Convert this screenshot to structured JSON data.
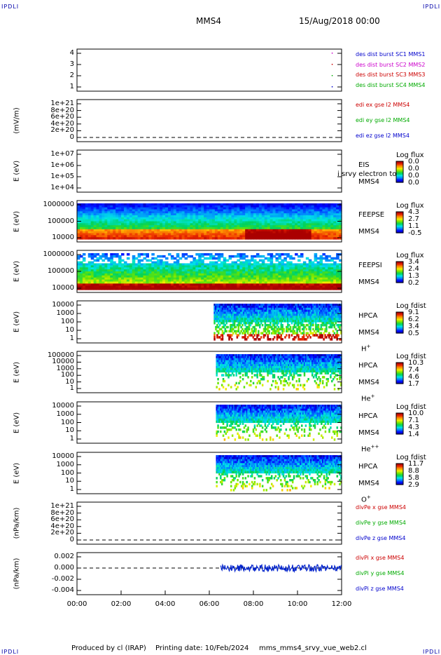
{
  "header": {
    "corner_tl": "IPDLI",
    "corner_tr": "IPDLI",
    "corner_bl": "IPDLI",
    "corner_br": "IPDLI",
    "spacecraft": "MMS4",
    "date": "15/Aug/2018 00:00"
  },
  "footer": {
    "produced": "Produced by cl (IRAP)",
    "printing": "Printing date: 10/Feb/2024",
    "file": "mms_mms4_srvy_vue_web2.cl"
  },
  "chart_data": {
    "type": "heatmap",
    "x": {
      "ticks": [
        "00:00",
        "02:00",
        "04:00",
        "06:00",
        "08:00",
        "10:00",
        "12:00"
      ],
      "range_hours": [
        0,
        12
      ]
    },
    "panels": [
      {
        "id": "burst",
        "kind": "line",
        "ylabel": "",
        "yticks": [
          "4",
          "3",
          "2",
          "1"
        ],
        "ylim": [
          0.5,
          4.5
        ],
        "legend": [
          {
            "text": "des dist burst SC1 MMS1",
            "color": "#0000cc"
          },
          {
            "text": "des dist burst SC2 MMS2",
            "color": "#cc00cc"
          },
          {
            "text": "des dist burst SC3 MMS3",
            "color": "#cc0000"
          },
          {
            "text": "des dist burst SC4 MMS4",
            "color": "#00aa00"
          }
        ],
        "points": [
          {
            "t": 11.55,
            "y": 4,
            "color": "#cc00cc"
          },
          {
            "t": 11.55,
            "y": 3,
            "color": "#cc0000"
          },
          {
            "t": 11.55,
            "y": 2,
            "color": "#00aa00"
          },
          {
            "t": 11.55,
            "y": 1,
            "color": "#0000cc"
          }
        ]
      },
      {
        "id": "edi",
        "kind": "line",
        "ylabel": "(mV/m)",
        "yticks": [
          "1e+21",
          "8e+20",
          "6e+20",
          "4e+20",
          "2e+20",
          "0"
        ],
        "ylim": [
          0,
          1e+21
        ],
        "zero_dashed": true,
        "legend": [
          {
            "text": "edi ex gse l2 MMS4",
            "color": "#cc0000"
          },
          {
            "text": "edi ey gse l2 MMS4",
            "color": "#00aa00"
          },
          {
            "text": "edi ez gse l2 MMS4",
            "color": "#0000cc"
          }
        ]
      },
      {
        "id": "eis",
        "kind": "spectrogram",
        "ylabel": "E (eV)",
        "yticks": [
          "1e+07",
          "1e+06",
          "1e+05",
          "1e+04"
        ],
        "ylim": [
          10000.0,
          10000000.0
        ],
        "side_labels": [
          "EIS",
          "MMS4"
        ],
        "overlay_text": "i srvy electron to",
        "colorbar": {
          "title": "Log flux",
          "ticks": [
            "0.0",
            "0.0",
            "0.0",
            "0.0"
          ]
        },
        "coverage_hours": null
      },
      {
        "id": "feepse",
        "kind": "spectrogram",
        "ylabel": "E (eV)",
        "yticks": [
          "1000000",
          "100000",
          "10000"
        ],
        "ylim": [
          10000.0,
          1000000.0
        ],
        "side_labels": [
          "FEEPSE",
          "MMS4"
        ],
        "colorbar": {
          "title": "Log flux",
          "ticks": [
            "4.3",
            "2.7",
            "1.1",
            "-0.5"
          ]
        },
        "coverage_hours": [
          0,
          12
        ]
      },
      {
        "id": "feepsi",
        "kind": "spectrogram",
        "ylabel": "E (eV)",
        "yticks": [
          "1000000",
          "100000",
          "10000"
        ],
        "ylim": [
          10000.0,
          1000000.0
        ],
        "side_labels": [
          "FEEPSI",
          "MMS4"
        ],
        "colorbar": {
          "title": "Log flux",
          "ticks": [
            "3.4",
            "2.4",
            "1.3",
            "0.2"
          ]
        },
        "coverage_hours": [
          0,
          12
        ]
      },
      {
        "id": "hpca_h",
        "kind": "spectrogram",
        "ylabel": "E (eV)",
        "yticks": [
          "10000",
          "1000",
          "100",
          "10",
          "1"
        ],
        "ylim": [
          1,
          30000.0
        ],
        "side_labels": [
          "HPCA",
          "MMS4"
        ],
        "species": "H",
        "species_sup": "+",
        "colorbar": {
          "title": "Log fdist",
          "ticks": [
            "9.1",
            "6.2",
            "3.4",
            "0.5"
          ]
        },
        "coverage_hours": [
          6.2,
          12
        ]
      },
      {
        "id": "hpca_he",
        "kind": "spectrogram",
        "ylabel": "E (eV)",
        "yticks": [
          "100000",
          "10000",
          "1000",
          "100",
          "10",
          "1"
        ],
        "ylim": [
          1,
          100000.0
        ],
        "side_labels": [
          "HPCA",
          "MMS4"
        ],
        "species": "He",
        "species_sup": "+",
        "colorbar": {
          "title": "Log fdist",
          "ticks": [
            "10.3",
            "7.4",
            "4.6",
            "1.7"
          ]
        },
        "coverage_hours": [
          6.3,
          12
        ]
      },
      {
        "id": "hpca_hepp",
        "kind": "spectrogram",
        "ylabel": "E (eV)",
        "yticks": [
          "10000",
          "1000",
          "100",
          "10",
          "1"
        ],
        "ylim": [
          1,
          30000.0
        ],
        "side_labels": [
          "HPCA",
          "MMS4"
        ],
        "species": "He",
        "species_sup": "++",
        "colorbar": {
          "title": "Log fdist",
          "ticks": [
            "10.0",
            "7.1",
            "4.3",
            "1.4"
          ]
        },
        "coverage_hours": [
          6.3,
          12
        ]
      },
      {
        "id": "hpca_o",
        "kind": "spectrogram",
        "ylabel": "E (eV)",
        "yticks": [
          "10000",
          "1000",
          "100",
          "10",
          "1"
        ],
        "ylim": [
          1,
          30000.0
        ],
        "side_labels": [
          "HPCA",
          "MMS4"
        ],
        "species": "O",
        "species_sup": "+",
        "colorbar": {
          "title": "Log fdist",
          "ticks": [
            "11.7",
            "8.8",
            "5.8",
            "2.9"
          ]
        },
        "coverage_hours": [
          6.3,
          12
        ]
      },
      {
        "id": "divpe",
        "kind": "line",
        "ylabel": "(nPa/km)",
        "yticks": [
          "1e+21",
          "8e+20",
          "6e+20",
          "4e+20",
          "2e+20",
          "0"
        ],
        "ylim": [
          0,
          1e+21
        ],
        "zero_dashed": true,
        "legend": [
          {
            "text": "divPe x gse MMS4",
            "color": "#cc0000"
          },
          {
            "text": "divPe y gse MMS4",
            "color": "#00aa00"
          },
          {
            "text": "divPe z gse MMS4",
            "color": "#0000cc"
          }
        ]
      },
      {
        "id": "divpi",
        "kind": "line",
        "ylabel": "(nPa/km)",
        "yticks": [
          "0.002",
          "0.000",
          "-0.002",
          "-0.004"
        ],
        "ylim": [
          -0.005,
          0.0035
        ],
        "zero_dashed": true,
        "series_start_hours": 6.5,
        "legend": [
          {
            "text": "divPi x gse MMS4",
            "color": "#cc0000"
          },
          {
            "text": "divPi y gse MMS4",
            "color": "#00aa00"
          },
          {
            "text": "divPi z gse MMS4",
            "color": "#0000cc"
          }
        ]
      }
    ]
  }
}
